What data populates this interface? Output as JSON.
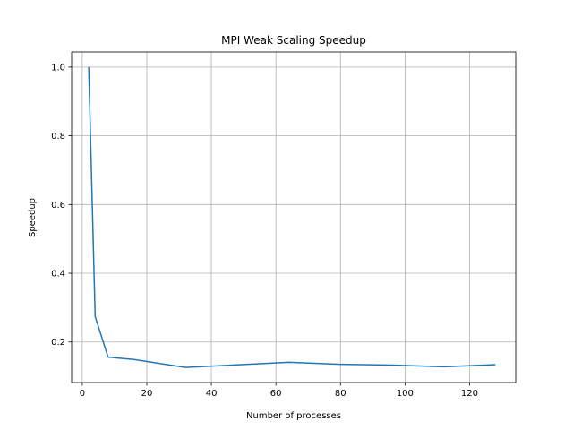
{
  "chart_data": {
    "type": "line",
    "title": "MPI Weak Scaling Speedup",
    "xlabel": "Number of processes",
    "ylabel": "Speedup",
    "xlim": [
      -3.3,
      134.3
    ],
    "ylim": [
      0.082,
      1.044
    ],
    "xticks": [
      0,
      20,
      40,
      60,
      80,
      100,
      120
    ],
    "yticks": [
      0.2,
      0.4,
      0.6,
      0.8,
      1.0
    ],
    "xtick_labels": [
      "0",
      "20",
      "40",
      "60",
      "80",
      "100",
      "120"
    ],
    "ytick_labels": [
      "0.2",
      "0.4",
      "0.6",
      "0.8",
      "1.0"
    ],
    "grid": true,
    "series": [
      {
        "color": "#1f77b4",
        "x": [
          2,
          4,
          8,
          16,
          32,
          64,
          80,
          96,
          112,
          128
        ],
        "y": [
          1.0,
          0.274,
          0.156,
          0.149,
          0.126,
          0.141,
          0.135,
          0.133,
          0.128,
          0.134
        ]
      }
    ]
  }
}
